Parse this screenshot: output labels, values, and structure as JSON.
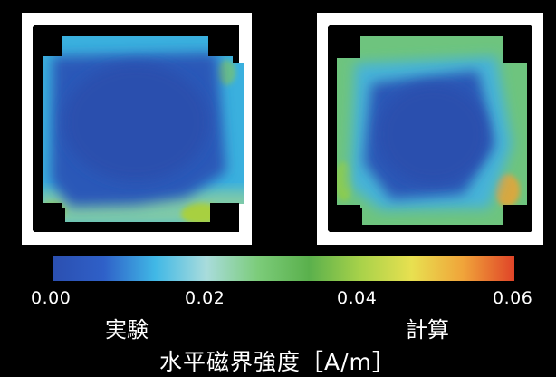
{
  "figure": {
    "panels": [
      {
        "label": "実験"
      },
      {
        "label": "計算"
      }
    ],
    "colorbar": {
      "ticks": [
        "0.00",
        "0.02",
        "0.04",
        "0.06"
      ],
      "colors": [
        "#2b4fb0",
        "#2f60c8",
        "#40b8e6",
        "#a9dcdc",
        "#7ccc7a",
        "#5ab04c",
        "#a8d24a",
        "#e8e050",
        "#f0a43a",
        "#e04428"
      ]
    },
    "quantity_label": "水平磁界強度［A/m］"
  }
}
